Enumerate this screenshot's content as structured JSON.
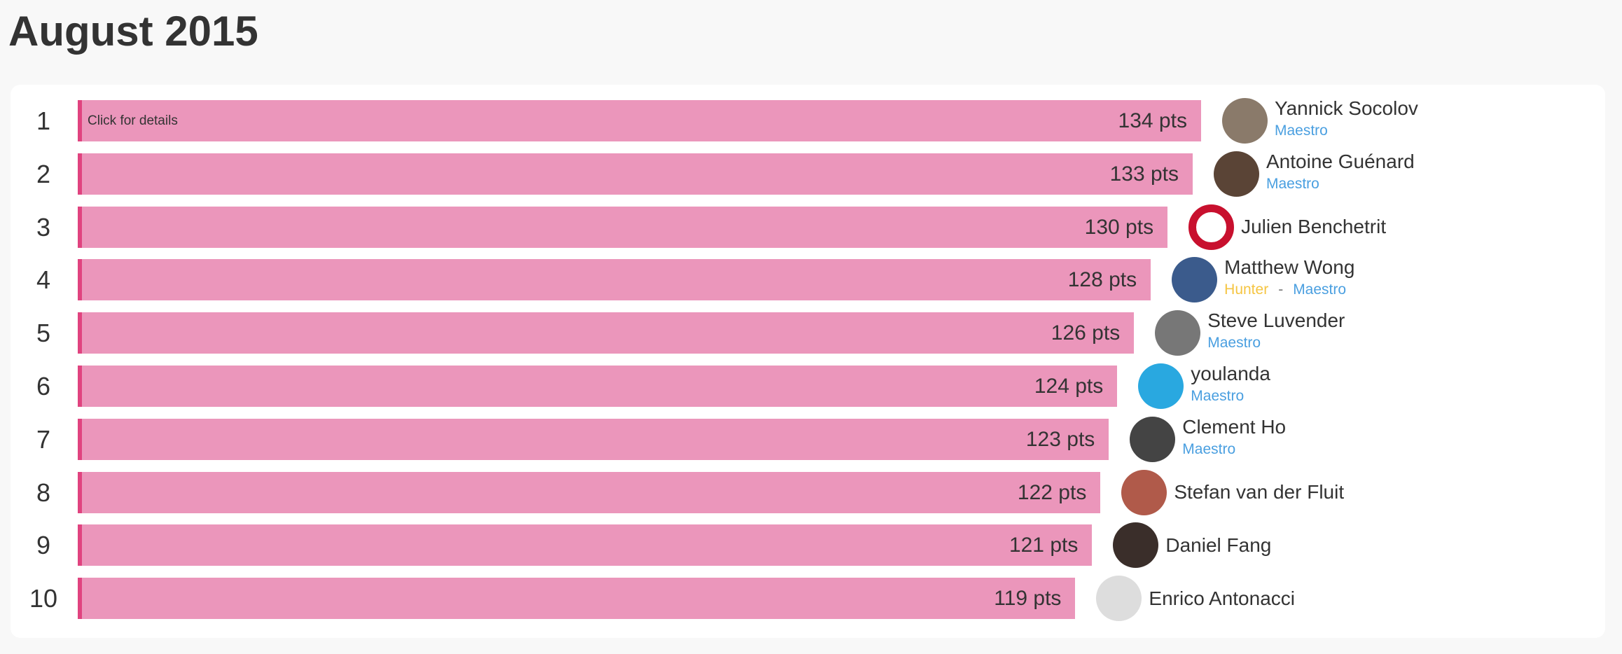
{
  "header": {
    "title": "August 2015"
  },
  "hint": "Click for details",
  "role_separator": "-",
  "entries": [
    {
      "rank": 1,
      "points": 134,
      "points_label": "134 pts",
      "name": "Yannick Socolov",
      "roles": [
        "Maestro"
      ]
    },
    {
      "rank": 2,
      "points": 133,
      "points_label": "133 pts",
      "name": "Antoine Guénard",
      "roles": [
        "Maestro"
      ]
    },
    {
      "rank": 3,
      "points": 130,
      "points_label": "130 pts",
      "name": "Julien Benchetrit",
      "roles": []
    },
    {
      "rank": 4,
      "points": 128,
      "points_label": "128 pts",
      "name": "Matthew Wong",
      "roles": [
        "Hunter",
        "Maestro"
      ]
    },
    {
      "rank": 5,
      "points": 126,
      "points_label": "126 pts",
      "name": "Steve Luvender",
      "roles": [
        "Maestro"
      ]
    },
    {
      "rank": 6,
      "points": 124,
      "points_label": "124 pts",
      "name": "youlanda",
      "roles": [
        "Maestro"
      ]
    },
    {
      "rank": 7,
      "points": 123,
      "points_label": "123 pts",
      "name": "Clement Ho",
      "roles": [
        "Maestro"
      ]
    },
    {
      "rank": 8,
      "points": 122,
      "points_label": "122 pts",
      "name": "Stefan van der Fluit",
      "roles": []
    },
    {
      "rank": 9,
      "points": 121,
      "points_label": "121 pts",
      "name": "Daniel Fang",
      "roles": []
    },
    {
      "rank": 10,
      "points": 119,
      "points_label": "119 pts",
      "name": "Enrico Antonacci",
      "roles": []
    }
  ]
}
